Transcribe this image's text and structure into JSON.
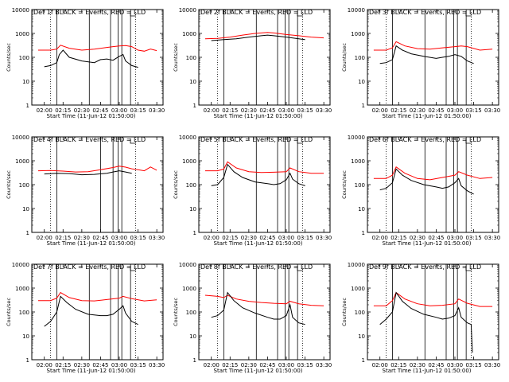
{
  "figure": {
    "start_label": "Start Time (11-Jun-12 01:50:00)",
    "ylabel": "Counts/sec",
    "line_colors": {
      "events": "#000000",
      "lld": "#ff0000"
    }
  },
  "chart_data": [
    {
      "type": "line",
      "title": "Det 1f BLACK = Events, RED = LLD",
      "xlabel": "Start Time (11-Jun-12 01:50:00)",
      "ylabel": "Counts/sec",
      "x_ticks": [
        "02:00",
        "02:15",
        "02:30",
        "02:45",
        "03:00",
        "03:15",
        "03:30"
      ],
      "y_ticks": [
        "1",
        "10",
        "100",
        "1000",
        "10000"
      ],
      "y_scale": "log",
      "xlim": [
        "01:50",
        "03:35"
      ],
      "ylim": [
        1,
        10000
      ],
      "dotted_lines": [
        "02:05",
        "03:13"
      ],
      "solid_lines": [
        "02:10",
        "02:36",
        "02:53",
        "02:59",
        "03:02",
        "03:09"
      ],
      "series": [
        {
          "color": "#000000",
          "x": [
            "02:00",
            "02:05",
            "02:10",
            "02:12",
            "02:15",
            "02:20",
            "02:30",
            "02:40",
            "02:45",
            "02:50",
            "02:55",
            "03:00",
            "03:03",
            "03:05",
            "03:10",
            "03:15"
          ],
          "y": [
            40,
            45,
            60,
            130,
            200,
            100,
            70,
            60,
            80,
            85,
            75,
            110,
            130,
            70,
            45,
            38
          ]
        },
        {
          "color": "#ff0000",
          "x": [
            "01:55",
            "02:05",
            "02:10",
            "02:13",
            "02:20",
            "02:30",
            "02:40",
            "02:50",
            "02:55",
            "03:00",
            "03:05",
            "03:10",
            "03:15",
            "03:20",
            "03:25",
            "03:30"
          ],
          "y": [
            200,
            200,
            220,
            320,
            240,
            200,
            220,
            260,
            280,
            300,
            310,
            280,
            200,
            180,
            220,
            190
          ]
        }
      ]
    },
    {
      "type": "line",
      "title": "Det 2f BLACK = Events, RED = LLD",
      "xlabel": "Start Time (11-Jun-12 01:50:00)",
      "ylabel": "Counts/sec",
      "x_ticks": [
        "02:00",
        "02:15",
        "02:30",
        "02:45",
        "03:00",
        "03:15",
        "03:30"
      ],
      "y_ticks": [
        "1",
        "10",
        "100",
        "1000",
        "10000"
      ],
      "y_scale": "log",
      "xlim": [
        "01:50",
        "03:35"
      ],
      "ylim": [
        1,
        10000
      ],
      "dotted_lines": [
        "02:05",
        "03:13"
      ],
      "solid_lines": [
        "02:10",
        "02:36",
        "02:53",
        "02:59",
        "03:02",
        "03:09"
      ],
      "series": [
        {
          "color": "#000000",
          "x": [
            "02:00",
            "02:10",
            "02:20",
            "02:30",
            "02:40",
            "02:45",
            "02:50",
            "03:00",
            "03:10",
            "03:15"
          ],
          "y": [
            500,
            550,
            600,
            700,
            800,
            850,
            800,
            700,
            600,
            550
          ]
        },
        {
          "color": "#ff0000",
          "x": [
            "01:55",
            "02:05",
            "02:15",
            "02:25",
            "02:35",
            "02:45",
            "02:50",
            "03:00",
            "03:10",
            "03:20",
            "03:30"
          ],
          "y": [
            600,
            620,
            700,
            850,
            1000,
            1100,
            1050,
            900,
            800,
            700,
            650
          ]
        }
      ]
    },
    {
      "type": "line",
      "title": "Det 3f BLACK = Events, RED = LLD",
      "xlabel": "Start Time (11-Jun-12 01:50:00)",
      "ylabel": "Counts/sec",
      "x_ticks": [
        "02:00",
        "02:15",
        "02:30",
        "02:45",
        "03:00",
        "03:15",
        "03:30"
      ],
      "y_ticks": [
        "1",
        "10",
        "100",
        "1000",
        "10000"
      ],
      "y_scale": "log",
      "xlim": [
        "01:50",
        "03:35"
      ],
      "ylim": [
        1,
        10000
      ],
      "dotted_lines": [
        "02:05",
        "03:13"
      ],
      "solid_lines": [
        "02:10",
        "02:36",
        "02:53",
        "02:59",
        "03:02",
        "03:09"
      ],
      "series": [
        {
          "color": "#000000",
          "x": [
            "02:00",
            "02:05",
            "02:10",
            "02:13",
            "02:18",
            "02:25",
            "02:35",
            "02:45",
            "02:50",
            "02:55",
            "03:00",
            "03:05",
            "03:10",
            "03:15"
          ],
          "y": [
            55,
            60,
            80,
            300,
            200,
            140,
            110,
            90,
            100,
            110,
            130,
            110,
            70,
            55
          ]
        },
        {
          "color": "#ff0000",
          "x": [
            "01:55",
            "02:05",
            "02:10",
            "02:13",
            "02:20",
            "02:30",
            "02:40",
            "02:50",
            "03:00",
            "03:05",
            "03:10",
            "03:20",
            "03:30"
          ],
          "y": [
            200,
            200,
            250,
            450,
            300,
            230,
            220,
            250,
            280,
            300,
            280,
            200,
            220
          ]
        }
      ]
    },
    {
      "type": "line",
      "title": "Det 4f BLACK = Events, RED = LLD",
      "xlabel": "Start Time (11-Jun-12 01:50:00)",
      "ylabel": "Counts/sec",
      "x_ticks": [
        "02:00",
        "02:15",
        "02:30",
        "02:45",
        "03:00",
        "03:15",
        "03:30"
      ],
      "y_ticks": [
        "1",
        "10",
        "100",
        "1000",
        "10000"
      ],
      "y_scale": "log",
      "xlim": [
        "01:50",
        "03:35"
      ],
      "ylim": [
        1,
        10000
      ],
      "dotted_lines": [
        "02:05",
        "03:13"
      ],
      "solid_lines": [
        "02:10",
        "02:45",
        "02:55",
        "02:59",
        "03:02"
      ],
      "series": [
        {
          "color": "#000000",
          "x": [
            "02:00",
            "02:10",
            "02:20",
            "02:30",
            "02:40",
            "02:50",
            "02:55",
            "03:00",
            "03:05",
            "03:10"
          ],
          "y": [
            280,
            300,
            290,
            260,
            270,
            300,
            340,
            380,
            340,
            300
          ]
        },
        {
          "color": "#ff0000",
          "x": [
            "01:55",
            "02:05",
            "02:15",
            "02:25",
            "02:35",
            "02:45",
            "02:55",
            "03:00",
            "03:05",
            "03:10",
            "03:15",
            "03:20",
            "03:25",
            "03:30"
          ],
          "y": [
            380,
            390,
            370,
            340,
            350,
            420,
            520,
            600,
            540,
            460,
            420,
            380,
            550,
            400
          ]
        }
      ]
    },
    {
      "type": "line",
      "title": "Det 5f BLACK = Events, RED = LLD",
      "xlabel": "Start Time (11-Jun-12 01:50:00)",
      "ylabel": "Counts/sec",
      "x_ticks": [
        "02:00",
        "02:15",
        "02:30",
        "02:45",
        "03:00",
        "03:15",
        "03:30"
      ],
      "y_ticks": [
        "1",
        "10",
        "100",
        "1000",
        "10000"
      ],
      "y_scale": "log",
      "xlim": [
        "01:50",
        "03:35"
      ],
      "ylim": [
        1,
        10000
      ],
      "dotted_lines": [
        "02:05",
        "03:13"
      ],
      "solid_lines": [
        "02:10",
        "02:36",
        "02:53",
        "02:59",
        "03:02",
        "03:09"
      ],
      "series": [
        {
          "color": "#000000",
          "x": [
            "02:00",
            "02:05",
            "02:10",
            "02:13",
            "02:18",
            "02:25",
            "02:35",
            "02:45",
            "02:50",
            "02:55",
            "03:00",
            "03:03",
            "03:05",
            "03:10",
            "03:15"
          ],
          "y": [
            90,
            100,
            200,
            700,
            350,
            200,
            130,
            110,
            100,
            110,
            160,
            300,
            170,
            110,
            90
          ]
        },
        {
          "color": "#ff0000",
          "x": [
            "01:55",
            "02:05",
            "02:10",
            "02:13",
            "02:20",
            "02:30",
            "02:40",
            "02:50",
            "03:00",
            "03:03",
            "03:10",
            "03:20",
            "03:30"
          ],
          "y": [
            380,
            380,
            450,
            900,
            500,
            350,
            320,
            330,
            350,
            500,
            350,
            300,
            300
          ]
        }
      ]
    },
    {
      "type": "line",
      "title": "Det 6f BLACK = Events, RED = LLD",
      "xlabel": "Start Time (11-Jun-12 01:50:00)",
      "ylabel": "Counts/sec",
      "x_ticks": [
        "02:00",
        "02:15",
        "02:30",
        "02:45",
        "03:00",
        "03:15",
        "03:30"
      ],
      "y_ticks": [
        "1",
        "10",
        "100",
        "1000",
        "10000"
      ],
      "y_scale": "log",
      "xlim": [
        "01:50",
        "03:35"
      ],
      "ylim": [
        1,
        10000
      ],
      "dotted_lines": [
        "02:05",
        "03:13"
      ],
      "solid_lines": [
        "02:10",
        "02:36",
        "02:53",
        "02:59",
        "03:02",
        "03:09"
      ],
      "series": [
        {
          "color": "#000000",
          "x": [
            "02:00",
            "02:05",
            "02:10",
            "02:13",
            "02:18",
            "02:25",
            "02:35",
            "02:45",
            "02:50",
            "02:55",
            "03:00",
            "03:03",
            "03:05",
            "03:10",
            "03:15"
          ],
          "y": [
            60,
            70,
            120,
            450,
            250,
            150,
            100,
            80,
            70,
            80,
            120,
            180,
            90,
            55,
            40
          ]
        },
        {
          "color": "#ff0000",
          "x": [
            "01:55",
            "02:05",
            "02:10",
            "02:13",
            "02:20",
            "02:30",
            "02:40",
            "02:50",
            "03:00",
            "03:03",
            "03:10",
            "03:20",
            "03:30"
          ],
          "y": [
            180,
            180,
            250,
            550,
            300,
            180,
            160,
            200,
            250,
            350,
            250,
            180,
            200
          ]
        }
      ]
    },
    {
      "type": "line",
      "title": "Det 7f BLACK = Events, RED = LLD",
      "xlabel": "Start Time (11-Jun-12 01:50:00)",
      "ylabel": "Counts/sec",
      "x_ticks": [
        "02:00",
        "02:15",
        "02:30",
        "02:45",
        "03:00",
        "03:15",
        "03:30"
      ],
      "y_ticks": [
        "1",
        "10",
        "100",
        "1000",
        "10000"
      ],
      "y_scale": "log",
      "xlim": [
        "01:50",
        "03:35"
      ],
      "ylim": [
        1,
        10000
      ],
      "dotted_lines": [
        "02:05",
        "03:13"
      ],
      "solid_lines": [
        "02:10",
        "02:36",
        "02:53",
        "02:59",
        "03:02",
        "03:09"
      ],
      "series": [
        {
          "color": "#000000",
          "x": [
            "02:00",
            "02:05",
            "02:10",
            "02:13",
            "02:18",
            "02:25",
            "02:35",
            "02:45",
            "02:50",
            "02:55",
            "03:00",
            "03:03",
            "03:05",
            "03:10",
            "03:15"
          ],
          "y": [
            25,
            40,
            100,
            450,
            250,
            130,
            80,
            70,
            70,
            80,
            130,
            180,
            90,
            40,
            30
          ]
        },
        {
          "color": "#ff0000",
          "x": [
            "01:55",
            "02:05",
            "02:10",
            "02:13",
            "02:20",
            "02:30",
            "02:40",
            "02:50",
            "03:00",
            "03:03",
            "03:10",
            "03:20",
            "03:30"
          ],
          "y": [
            300,
            300,
            380,
            650,
            400,
            300,
            290,
            330,
            380,
            450,
            360,
            290,
            320
          ]
        }
      ]
    },
    {
      "type": "line",
      "title": "Det 8f BLACK = Events, RED = LLD",
      "xlabel": "Start Time (11-Jun-12 01:50:00)",
      "ylabel": "Counts/sec",
      "x_ticks": [
        "02:00",
        "02:15",
        "02:30",
        "02:45",
        "03:00",
        "03:15",
        "03:30"
      ],
      "y_ticks": [
        "1",
        "10",
        "100",
        "1000",
        "10000"
      ],
      "y_scale": "log",
      "xlim": [
        "01:50",
        "03:35"
      ],
      "ylim": [
        1,
        10000
      ],
      "dotted_lines": [
        "02:05",
        "03:13"
      ],
      "solid_lines": [
        "02:10",
        "02:36",
        "02:53",
        "02:59",
        "03:02",
        "03:09"
      ],
      "series": [
        {
          "color": "#000000",
          "x": [
            "02:00",
            "02:05",
            "02:10",
            "02:13",
            "02:18",
            "02:25",
            "02:35",
            "02:45",
            "02:50",
            "02:55",
            "03:00",
            "03:03",
            "03:05",
            "03:10",
            "03:15"
          ],
          "y": [
            60,
            70,
            120,
            650,
            300,
            150,
            90,
            60,
            50,
            50,
            70,
            200,
            60,
            35,
            30
          ]
        },
        {
          "color": "#ff0000",
          "x": [
            "01:55",
            "02:05",
            "02:10",
            "02:13",
            "02:20",
            "02:30",
            "02:40",
            "02:50",
            "03:00",
            "03:03",
            "03:10",
            "03:20",
            "03:30"
          ],
          "y": [
            500,
            450,
            400,
            500,
            350,
            280,
            250,
            230,
            220,
            280,
            220,
            190,
            180
          ]
        }
      ]
    },
    {
      "type": "line",
      "title": "Det 9f BLACK = Events, RED = LLD",
      "xlabel": "Start Time (11-Jun-12 01:50:00)",
      "ylabel": "Counts/sec",
      "x_ticks": [
        "02:00",
        "02:15",
        "02:30",
        "02:45",
        "03:00",
        "03:15",
        "03:30"
      ],
      "y_ticks": [
        "1",
        "10",
        "100",
        "1000",
        "10000"
      ],
      "y_scale": "log",
      "xlim": [
        "01:50",
        "03:35"
      ],
      "ylim": [
        1,
        10000
      ],
      "dotted_lines": [
        "02:05",
        "03:13"
      ],
      "solid_lines": [
        "02:10",
        "02:36",
        "02:53",
        "02:59",
        "03:02",
        "03:09"
      ],
      "series": [
        {
          "color": "#000000",
          "x": [
            "02:00",
            "02:05",
            "02:10",
            "02:13",
            "02:18",
            "02:25",
            "02:35",
            "02:45",
            "02:50",
            "02:55",
            "03:00",
            "03:03",
            "03:05",
            "03:10",
            "03:13",
            "03:14"
          ],
          "y": [
            30,
            50,
            100,
            650,
            280,
            140,
            80,
            60,
            50,
            55,
            70,
            150,
            60,
            35,
            30,
            2
          ]
        },
        {
          "color": "#ff0000",
          "x": [
            "01:55",
            "02:05",
            "02:10",
            "02:13",
            "02:20",
            "02:30",
            "02:40",
            "02:50",
            "03:00",
            "03:03",
            "03:10",
            "03:20",
            "03:30"
          ],
          "y": [
            180,
            180,
            300,
            650,
            350,
            220,
            180,
            190,
            220,
            350,
            230,
            170,
            170
          ]
        }
      ]
    }
  ]
}
